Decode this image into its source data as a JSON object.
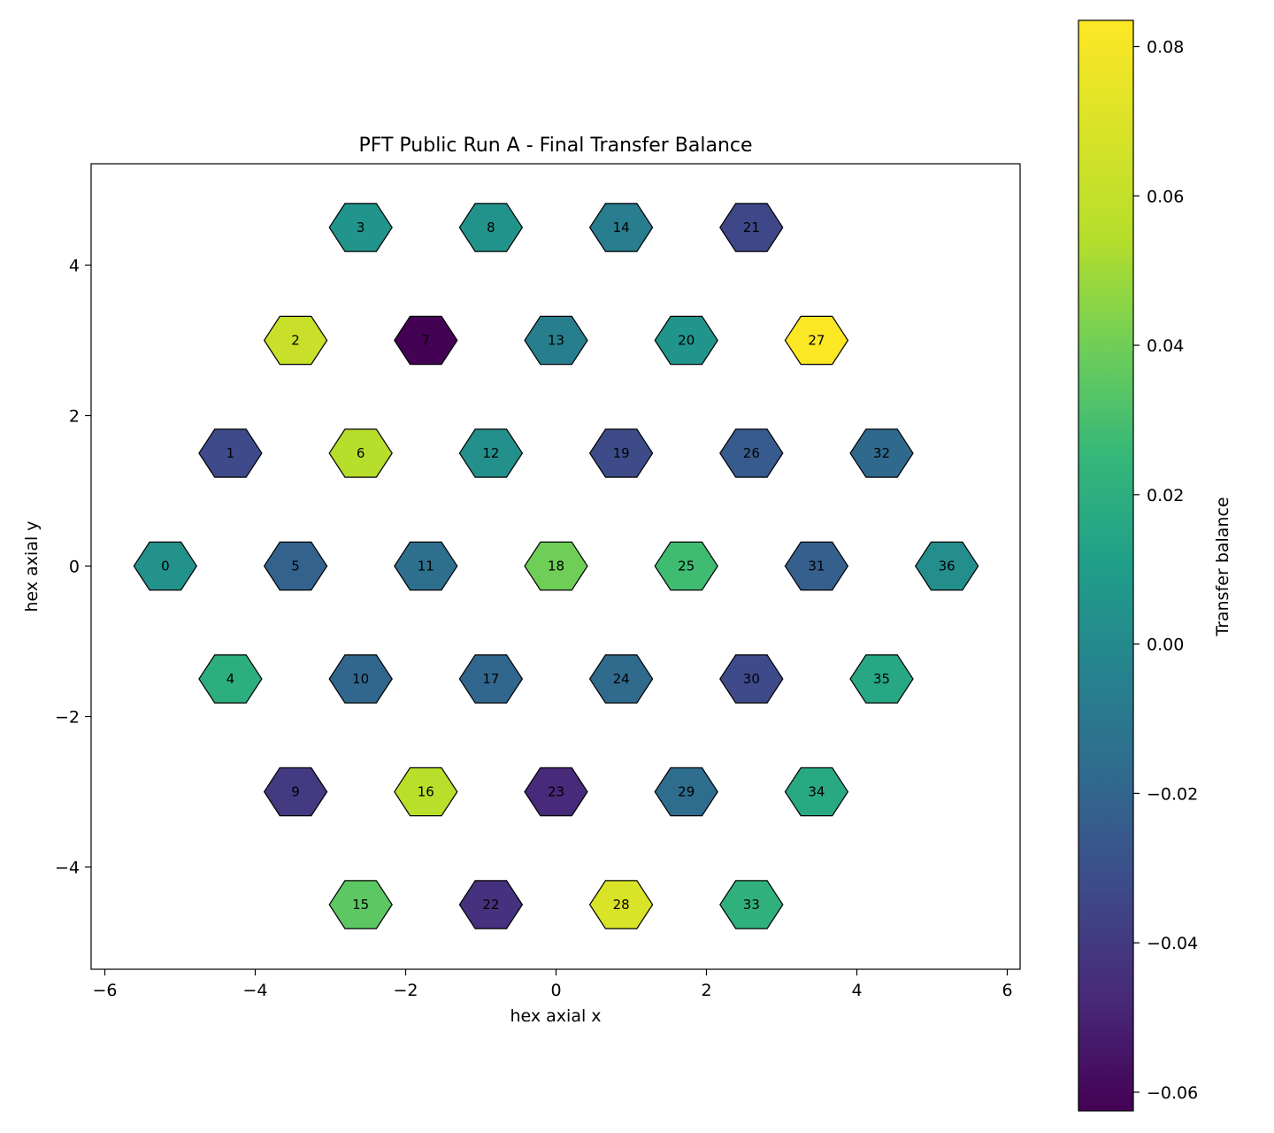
{
  "chart_data": {
    "type": "heatmap",
    "title": "PFT Public Run A - Final Transfer Balance",
    "xlabel": "hex axial x",
    "ylabel": "hex axial y",
    "xlim": [
      -6.2,
      6.2
    ],
    "ylim": [
      -5.3,
      5.3
    ],
    "x_ticks": [
      -6,
      -4,
      -2,
      0,
      2,
      4,
      6
    ],
    "x_tick_labels": [
      "−6",
      "−4",
      "−2",
      "0",
      "2",
      "4",
      "6"
    ],
    "y_ticks": [
      -4,
      -2,
      0,
      2,
      4
    ],
    "y_tick_labels": [
      "−4",
      "−2",
      "0",
      "2",
      "4"
    ],
    "colorbar": {
      "label": "Transfer balance",
      "colormap": "viridis",
      "range": [
        -0.0625,
        0.0835
      ],
      "ticks": [
        -0.06,
        -0.04,
        -0.02,
        0.0,
        0.02,
        0.04,
        0.06,
        0.08
      ],
      "tick_labels": [
        "−0.06",
        "−0.04",
        "−0.02",
        "0.00",
        "0.02",
        "0.04",
        "0.06",
        "0.08"
      ]
    },
    "cells": [
      {
        "id": "0",
        "x": -5.196,
        "y": 0.0,
        "value": 0.004
      },
      {
        "id": "1",
        "x": -4.33,
        "y": 1.5,
        "value": -0.033
      },
      {
        "id": "2",
        "x": -3.464,
        "y": 3.0,
        "value": 0.062
      },
      {
        "id": "3",
        "x": -2.598,
        "y": 4.5,
        "value": 0.006
      },
      {
        "id": "4",
        "x": -4.33,
        "y": -1.5,
        "value": 0.02
      },
      {
        "id": "5",
        "x": -3.464,
        "y": 0.0,
        "value": -0.021
      },
      {
        "id": "6",
        "x": -2.598,
        "y": 1.5,
        "value": 0.055
      },
      {
        "id": "7",
        "x": -1.732,
        "y": 3.0,
        "value": -0.062
      },
      {
        "id": "8",
        "x": -0.866,
        "y": 4.5,
        "value": 0.005
      },
      {
        "id": "9",
        "x": -3.464,
        "y": -3.0,
        "value": -0.04
      },
      {
        "id": "10",
        "x": -2.598,
        "y": -1.5,
        "value": -0.019
      },
      {
        "id": "11",
        "x": -1.732,
        "y": 0.0,
        "value": -0.015
      },
      {
        "id": "12",
        "x": -0.866,
        "y": 1.5,
        "value": 0.003
      },
      {
        "id": "13",
        "x": 0.0,
        "y": 3.0,
        "value": -0.006
      },
      {
        "id": "14",
        "x": 0.866,
        "y": 4.5,
        "value": -0.007
      },
      {
        "id": "15",
        "x": -2.598,
        "y": -4.5,
        "value": 0.035
      },
      {
        "id": "16",
        "x": -1.732,
        "y": -3.0,
        "value": 0.056
      },
      {
        "id": "17",
        "x": -0.866,
        "y": -1.5,
        "value": -0.019
      },
      {
        "id": "18",
        "x": 0.0,
        "y": 0.0,
        "value": 0.04
      },
      {
        "id": "19",
        "x": 0.866,
        "y": 1.5,
        "value": -0.032
      },
      {
        "id": "20",
        "x": 1.732,
        "y": 3.0,
        "value": 0.006
      },
      {
        "id": "21",
        "x": 2.598,
        "y": 4.5,
        "value": -0.034
      },
      {
        "id": "22",
        "x": -0.866,
        "y": -4.5,
        "value": -0.044
      },
      {
        "id": "23",
        "x": 0.0,
        "y": -3.0,
        "value": -0.047
      },
      {
        "id": "24",
        "x": 0.866,
        "y": -1.5,
        "value": -0.017
      },
      {
        "id": "25",
        "x": 1.732,
        "y": 0.0,
        "value": 0.028
      },
      {
        "id": "26",
        "x": 2.598,
        "y": 1.5,
        "value": -0.025
      },
      {
        "id": "27",
        "x": 3.464,
        "y": 3.0,
        "value": 0.083
      },
      {
        "id": "28",
        "x": 0.866,
        "y": -4.5,
        "value": 0.069
      },
      {
        "id": "29",
        "x": 1.732,
        "y": -3.0,
        "value": -0.016
      },
      {
        "id": "30",
        "x": 2.598,
        "y": -1.5,
        "value": -0.033
      },
      {
        "id": "31",
        "x": 3.464,
        "y": 0.0,
        "value": -0.023
      },
      {
        "id": "32",
        "x": 4.33,
        "y": 1.5,
        "value": -0.018
      },
      {
        "id": "33",
        "x": 2.598,
        "y": -4.5,
        "value": 0.021
      },
      {
        "id": "34",
        "x": 3.464,
        "y": -3.0,
        "value": 0.017
      },
      {
        "id": "35",
        "x": 4.33,
        "y": -1.5,
        "value": 0.016
      },
      {
        "id": "36",
        "x": 5.196,
        "y": 0.0,
        "value": 0.002
      }
    ]
  }
}
